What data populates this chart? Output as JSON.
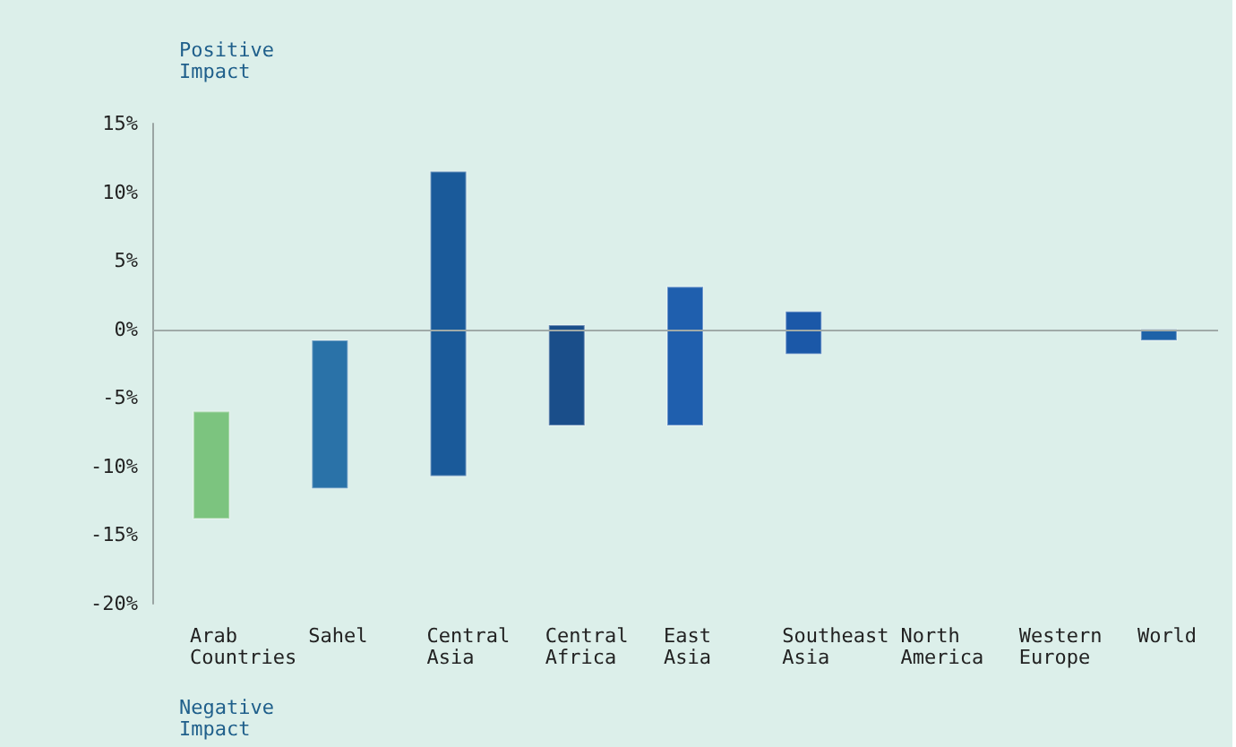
{
  "chart_data": {
    "type": "bar",
    "categories": [
      "Arab\nCountries",
      "Sahel",
      "Central\nAsia",
      "Central\nAfrica",
      "East\nAsia",
      "Southeast\nAsia",
      "North\nAmerica",
      "Western\nEurope",
      "World"
    ],
    "base": [
      -13.8,
      -11.6,
      -10.7,
      -7.0,
      -7.0,
      -1.8,
      null,
      null,
      -0.8
    ],
    "values": [
      7.8,
      10.8,
      22.2,
      7.3,
      10.1,
      3.1,
      null,
      null,
      0.8
    ],
    "colors": [
      "#7cc47f",
      "#2a72a8",
      "#1a5a9a",
      "#1a4e8a",
      "#1f5fae",
      "#1b58a8",
      null,
      null,
      "#1e62a8"
    ],
    "ylim": [
      -20,
      15
    ],
    "yticks": [
      {
        "value": -20,
        "label": "-20%"
      },
      {
        "value": -15,
        "label": "-15%"
      },
      {
        "value": -10,
        "label": "-10%"
      },
      {
        "value": -5,
        "label": "-5%"
      },
      {
        "value": 0,
        "label": "0%"
      },
      {
        "value": 5,
        "label": "5%"
      },
      {
        "value": 10,
        "label": "10%"
      },
      {
        "value": 15,
        "label": "15%"
      }
    ],
    "ref_lines": [
      {
        "axis": "y",
        "value": 0,
        "color": "#a0aaa8"
      }
    ],
    "annotations": [
      "Positive\nImpact",
      "Negative\nImpact"
    ],
    "grid": false
  }
}
